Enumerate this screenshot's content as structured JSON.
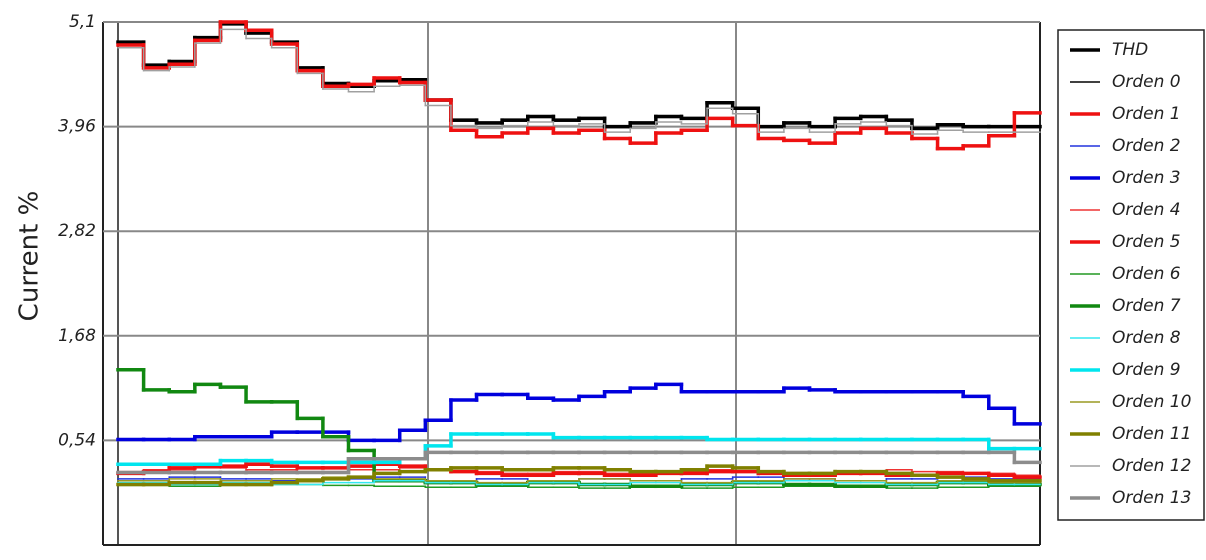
{
  "chart_data": {
    "type": "step-line",
    "y_label": "Current %",
    "categories": [
      null,
      null,
      null,
      null,
      null,
      null,
      null,
      null,
      null,
      null,
      null,
      null,
      null,
      null,
      null,
      null,
      null,
      null,
      null,
      null,
      null,
      null,
      null,
      null,
      null,
      null,
      null,
      null,
      null,
      null,
      null,
      null,
      null,
      null,
      null,
      null
    ],
    "ylim": [
      -0.6,
      5.1
    ],
    "yticks": [
      {
        "value": 5.1,
        "label": "5,1"
      },
      {
        "value": 3.96,
        "label": "3,96"
      },
      {
        "value": 2.82,
        "label": "2,82"
      },
      {
        "value": 1.68,
        "label": "1,68"
      },
      {
        "value": 0.54,
        "label": "0,54"
      }
    ],
    "grid": true,
    "legend": "right",
    "series": [
      {
        "name": "THD",
        "color": "#000000",
        "width": 3.5,
        "values": [
          4.88,
          4.63,
          4.67,
          4.93,
          5.08,
          4.98,
          4.88,
          4.6,
          4.43,
          4.4,
          4.46,
          4.47,
          4.25,
          4.03,
          4.0,
          4.03,
          4.07,
          4.03,
          4.05,
          3.96,
          4.0,
          4.07,
          4.05,
          4.22,
          4.16,
          3.96,
          4.0,
          3.96,
          4.05,
          4.07,
          4.03,
          3.94,
          3.98,
          3.96,
          3.96,
          3.96
        ]
      },
      {
        "name": "Orden 0",
        "color": "#000000",
        "width": 1.5,
        "values": [
          4.87,
          4.62,
          4.66,
          4.92,
          5.07,
          4.97,
          4.87,
          4.59,
          4.42,
          4.39,
          4.45,
          4.46,
          4.24,
          4.02,
          3.99,
          4.02,
          4.06,
          4.02,
          4.04,
          3.95,
          3.99,
          4.06,
          4.04,
          4.21,
          4.15,
          3.95,
          3.99,
          3.95,
          4.04,
          4.06,
          4.02,
          3.93,
          3.97,
          3.95,
          3.95,
          3.95
        ]
      },
      {
        "name": "Orden 1",
        "color": "#ee1111",
        "width": 3.5,
        "values": [
          4.85,
          4.6,
          4.64,
          4.9,
          5.1,
          5.01,
          4.86,
          4.57,
          4.4,
          4.42,
          4.49,
          4.44,
          4.25,
          3.92,
          3.85,
          3.89,
          3.94,
          3.89,
          3.92,
          3.83,
          3.78,
          3.89,
          3.92,
          4.05,
          3.97,
          3.83,
          3.81,
          3.78,
          3.89,
          3.94,
          3.89,
          3.83,
          3.72,
          3.75,
          3.86,
          4.11
        ]
      },
      {
        "name": "Orden 2",
        "color": "#2233dd",
        "width": 1.5,
        "values": [
          0.12,
          0.12,
          0.14,
          0.14,
          0.12,
          0.12,
          0.1,
          0.1,
          0.12,
          0.12,
          0.14,
          0.14,
          0.1,
          0.1,
          0.12,
          0.12,
          0.1,
          0.1,
          0.12,
          0.12,
          0.1,
          0.1,
          0.12,
          0.12,
          0.14,
          0.14,
          0.12,
          0.12,
          0.1,
          0.1,
          0.12,
          0.12,
          0.14,
          0.14,
          0.12,
          0.12
        ]
      },
      {
        "name": "Orden 3",
        "color": "#0000dd",
        "width": 3.5,
        "values": [
          0.55,
          0.55,
          0.55,
          0.58,
          0.58,
          0.58,
          0.63,
          0.63,
          0.63,
          0.54,
          0.54,
          0.65,
          0.76,
          0.98,
          1.04,
          1.04,
          1.0,
          0.98,
          1.02,
          1.07,
          1.11,
          1.15,
          1.07,
          1.07,
          1.07,
          1.07,
          1.11,
          1.09,
          1.07,
          1.07,
          1.07,
          1.07,
          1.07,
          1.02,
          0.89,
          0.72
        ]
      },
      {
        "name": "Orden 4",
        "color": "#ee3333",
        "width": 1.5,
        "values": [
          0.2,
          0.22,
          0.22,
          0.24,
          0.24,
          0.22,
          0.22,
          0.2,
          0.2,
          0.22,
          0.22,
          0.24,
          0.22,
          0.2,
          0.2,
          0.18,
          0.18,
          0.2,
          0.2,
          0.18,
          0.18,
          0.2,
          0.2,
          0.22,
          0.2,
          0.2,
          0.18,
          0.18,
          0.2,
          0.2,
          0.22,
          0.2,
          0.2,
          0.18,
          0.18,
          0.16
        ]
      },
      {
        "name": "Orden 5",
        "color": "#ee1111",
        "width": 3.5,
        "values": [
          0.18,
          0.2,
          0.24,
          0.26,
          0.26,
          0.28,
          0.26,
          0.24,
          0.24,
          0.26,
          0.28,
          0.26,
          0.22,
          0.2,
          0.18,
          0.16,
          0.16,
          0.18,
          0.18,
          0.16,
          0.16,
          0.18,
          0.18,
          0.2,
          0.2,
          0.18,
          0.16,
          0.16,
          0.18,
          0.18,
          0.16,
          0.16,
          0.18,
          0.18,
          0.16,
          0.14
        ]
      },
      {
        "name": "Orden 6",
        "color": "#229922",
        "width": 1.5,
        "values": [
          0.05,
          0.05,
          0.04,
          0.04,
          0.05,
          0.05,
          0.06,
          0.06,
          0.05,
          0.05,
          0.04,
          0.04,
          0.03,
          0.03,
          0.04,
          0.04,
          0.03,
          0.03,
          0.02,
          0.02,
          0.03,
          0.03,
          0.02,
          0.02,
          0.03,
          0.03,
          0.04,
          0.04,
          0.03,
          0.03,
          0.02,
          0.02,
          0.03,
          0.03,
          0.04,
          0.04
        ]
      },
      {
        "name": "Orden 7",
        "color": "#118811",
        "width": 3.5,
        "values": [
          1.31,
          1.09,
          1.07,
          1.15,
          1.12,
          0.96,
          0.96,
          0.78,
          0.58,
          0.43,
          0.1,
          0.1,
          0.08,
          0.08,
          0.06,
          0.06,
          0.08,
          0.08,
          0.06,
          0.06,
          0.04,
          0.04,
          0.06,
          0.06,
          0.08,
          0.08,
          0.06,
          0.06,
          0.04,
          0.04,
          0.06,
          0.06,
          0.08,
          0.08,
          0.06,
          0.06
        ]
      },
      {
        "name": "Orden 8",
        "color": "#33e8f0",
        "width": 1.5,
        "values": [
          0.08,
          0.08,
          0.06,
          0.06,
          0.08,
          0.08,
          0.06,
          0.06,
          0.08,
          0.08,
          0.1,
          0.1,
          0.08,
          0.08,
          0.06,
          0.06,
          0.08,
          0.08,
          0.06,
          0.06,
          0.08,
          0.08,
          0.06,
          0.06,
          0.08,
          0.08,
          0.1,
          0.1,
          0.08,
          0.08,
          0.06,
          0.06,
          0.08,
          0.08,
          0.06,
          0.06
        ]
      },
      {
        "name": "Orden 9",
        "color": "#00e5ee",
        "width": 3.5,
        "values": [
          0.28,
          0.28,
          0.28,
          0.28,
          0.32,
          0.32,
          0.3,
          0.3,
          0.3,
          0.3,
          0.3,
          0.34,
          0.48,
          0.61,
          0.61,
          0.61,
          0.61,
          0.57,
          0.57,
          0.57,
          0.57,
          0.57,
          0.57,
          0.55,
          0.55,
          0.55,
          0.55,
          0.55,
          0.55,
          0.55,
          0.55,
          0.55,
          0.55,
          0.55,
          0.45,
          0.45
        ]
      },
      {
        "name": "Orden 10",
        "color": "#9a9a22",
        "width": 1.5,
        "values": [
          0.1,
          0.1,
          0.12,
          0.12,
          0.1,
          0.1,
          0.12,
          0.12,
          0.14,
          0.14,
          0.12,
          0.12,
          0.1,
          0.1,
          0.08,
          0.08,
          0.1,
          0.1,
          0.12,
          0.12,
          0.1,
          0.1,
          0.08,
          0.08,
          0.1,
          0.1,
          0.12,
          0.12,
          0.1,
          0.1,
          0.08,
          0.08,
          0.1,
          0.1,
          0.08,
          0.08
        ]
      },
      {
        "name": "Orden 11",
        "color": "#808000",
        "width": 3.5,
        "values": [
          0.06,
          0.06,
          0.08,
          0.08,
          0.06,
          0.06,
          0.08,
          0.1,
          0.12,
          0.14,
          0.18,
          0.2,
          0.22,
          0.24,
          0.24,
          0.22,
          0.22,
          0.24,
          0.24,
          0.22,
          0.2,
          0.2,
          0.22,
          0.26,
          0.24,
          0.2,
          0.18,
          0.18,
          0.2,
          0.2,
          0.18,
          0.16,
          0.14,
          0.12,
          0.1,
          0.1
        ]
      },
      {
        "name": "Orden 12",
        "color": "#a0a0a0",
        "width": 1.5,
        "values": [
          4.82,
          4.57,
          4.61,
          4.87,
          5.02,
          4.92,
          4.82,
          4.54,
          4.37,
          4.34,
          4.4,
          4.41,
          4.19,
          3.97,
          3.94,
          3.97,
          4.01,
          3.97,
          3.99,
          3.9,
          3.94,
          4.01,
          3.99,
          4.16,
          4.1,
          3.9,
          3.94,
          3.9,
          3.99,
          4.01,
          3.97,
          3.88,
          3.92,
          3.9,
          3.9,
          3.9
        ]
      },
      {
        "name": "Orden 13",
        "color": "#8c8c8c",
        "width": 3.5,
        "values": [
          0.19,
          0.19,
          0.19,
          0.19,
          0.19,
          0.19,
          0.19,
          0.19,
          0.19,
          0.34,
          0.34,
          0.34,
          0.41,
          0.41,
          0.41,
          0.41,
          0.41,
          0.41,
          0.41,
          0.41,
          0.41,
          0.41,
          0.41,
          0.41,
          0.41,
          0.41,
          0.41,
          0.41,
          0.41,
          0.41,
          0.41,
          0.41,
          0.41,
          0.41,
          0.41,
          0.3
        ]
      }
    ]
  }
}
